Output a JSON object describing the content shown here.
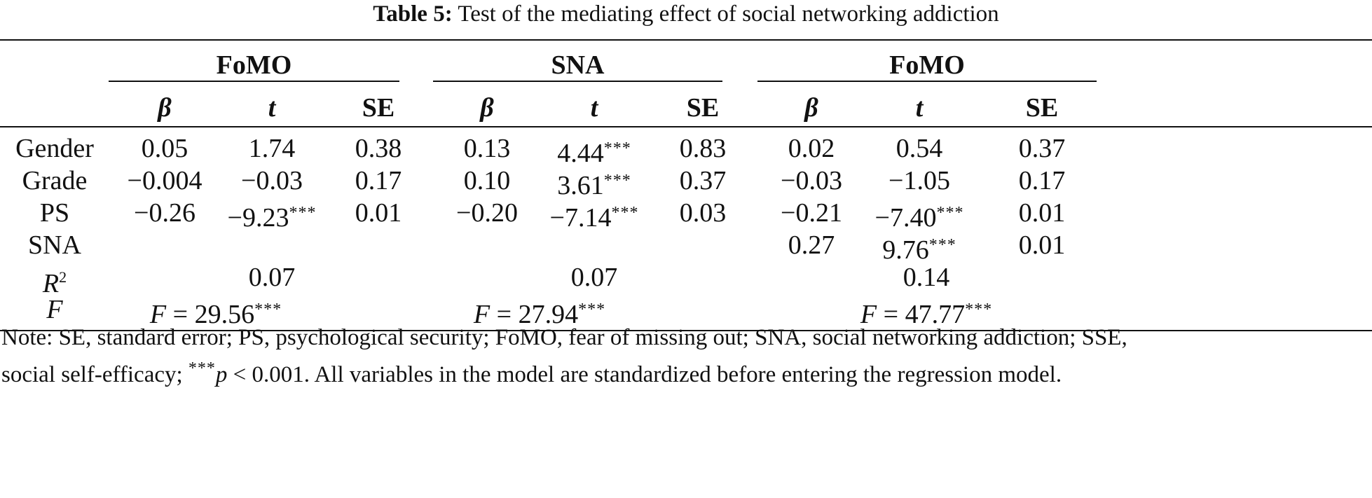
{
  "caption": {
    "label": "Table 5:",
    "text": "Test of the mediating effect of social networking addiction"
  },
  "groups": [
    "FoMO",
    "SNA",
    "FoMO"
  ],
  "subheaders": [
    "β",
    "t",
    "SE"
  ],
  "rows": [
    {
      "label": "Gender",
      "cells": [
        {
          "v": "0.05"
        },
        {
          "v": "1.74"
        },
        {
          "v": "0.38"
        },
        {
          "v": "0.13"
        },
        {
          "v": "4.44",
          "stars": "***"
        },
        {
          "v": "0.83"
        },
        {
          "v": "0.02"
        },
        {
          "v": "0.54"
        },
        {
          "v": "0.37"
        }
      ]
    },
    {
      "label": "Grade",
      "cells": [
        {
          "v": "−0.004"
        },
        {
          "v": "−0.03"
        },
        {
          "v": "0.17"
        },
        {
          "v": "0.10"
        },
        {
          "v": "3.61",
          "stars": "***"
        },
        {
          "v": "0.37"
        },
        {
          "v": "−0.03"
        },
        {
          "v": "−1.05"
        },
        {
          "v": "0.17"
        }
      ]
    },
    {
      "label": "PS",
      "cells": [
        {
          "v": "−0.26"
        },
        {
          "v": "−9.23",
          "stars": "***"
        },
        {
          "v": "0.01"
        },
        {
          "v": "−0.20"
        },
        {
          "v": "−7.14",
          "stars": "***"
        },
        {
          "v": "0.03"
        },
        {
          "v": "−0.21"
        },
        {
          "v": "−7.40",
          "stars": "***"
        },
        {
          "v": "0.01"
        }
      ]
    },
    {
      "label": "SNA",
      "cells": [
        {
          "v": ""
        },
        {
          "v": ""
        },
        {
          "v": ""
        },
        {
          "v": ""
        },
        {
          "v": ""
        },
        {
          "v": ""
        },
        {
          "v": "0.27"
        },
        {
          "v": "9.76",
          "stars": "***"
        },
        {
          "v": "0.01"
        }
      ]
    }
  ],
  "r2": {
    "label": "R",
    "sup": "2",
    "values": [
      "0.07",
      "0.07",
      "0.14"
    ]
  },
  "f": {
    "label": "F",
    "values": [
      {
        "v": "F = 29.56",
        "stars": "***"
      },
      {
        "v": "F = 27.94",
        "stars": "***"
      },
      {
        "v": "F = 47.77",
        "stars": "***"
      }
    ]
  },
  "note": {
    "line1": "Note: SE, standard error; PS, psychological security; FoMO, fear of missing out; SNA, social networking addiction; SSE,",
    "line2_pre": "social self-efficacy; ",
    "line2_stars": "***",
    "line2_p": "p",
    "line2_post": " < 0.001. All variables in the model are standardized before entering the regression model."
  }
}
